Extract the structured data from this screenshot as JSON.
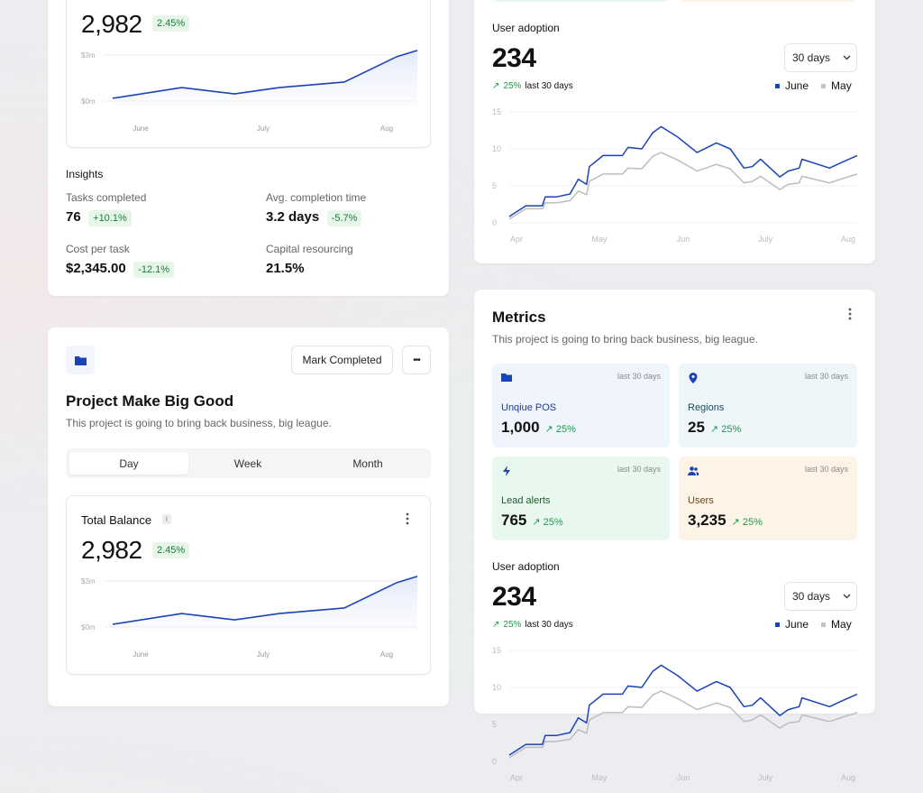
{
  "balance_card_top": {
    "value": "2,982",
    "change": "2.45%"
  },
  "insights": {
    "title": "Insights",
    "items": [
      {
        "label": "Tasks completed",
        "value": "76",
        "change": "+10.1%"
      },
      {
        "label": "Avg. completion time",
        "value": "3.2 days",
        "change": "-5.7%"
      },
      {
        "label": "Cost per task",
        "value": "$2,345.00",
        "change": "-12.1%"
      },
      {
        "label": "Capital resourcing",
        "value": "21.5%"
      }
    ]
  },
  "project": {
    "icon": "folder-icon",
    "mark_completed": "Mark Completed",
    "more": "•••",
    "title": "Project Make Big Good",
    "description": "This project is going to bring back business, big league.",
    "tabs": [
      "Day",
      "Week",
      "Month"
    ],
    "active_tab": "Day",
    "balance": {
      "title": "Total Balance",
      "info": "i",
      "value": "2,982",
      "change": "2.45%"
    }
  },
  "adoption": {
    "title": "User adoption",
    "value": "234",
    "trend": "25%",
    "trend_period": "last 30 days",
    "dropdown": "30 days",
    "legend": [
      "June",
      "May"
    ]
  },
  "metrics": {
    "title": "Metrics",
    "description": "This project is going to bring back business, big league.",
    "tiles": [
      {
        "icon": "folder-icon",
        "period": "last 30 days",
        "label": "Unqiue POS",
        "value": "1,000",
        "change": "25%",
        "bg": "#f0f5fd",
        "label_color": "#1d3f8f"
      },
      {
        "icon": "location-pin-icon",
        "period": "last 30 days",
        "label": "Regions",
        "value": "25",
        "change": "25%",
        "bg": "#eff6fa",
        "label_color": "#1d4a5a"
      },
      {
        "icon": "lightning-icon",
        "period": "last 30 days",
        "label": "Lead alerts",
        "value": "765",
        "change": "25%",
        "bg": "#e9f8ee",
        "label_color": "#1d5a2e"
      },
      {
        "icon": "users-icon",
        "period": "last 30 days",
        "label": "Users",
        "value": "3,235",
        "change": "25%",
        "bg": "#fdf3e6",
        "label_color": "#6a4a1a"
      }
    ]
  },
  "colors": {
    "accent": "#1a43b8",
    "positive": "#1c9a4a",
    "secondary_series": "#bdbdbd"
  },
  "chart_data": [
    {
      "type": "area",
      "ylabels": [
        "$3m",
        "$0m"
      ],
      "yticks": [
        3,
        0
      ],
      "ylim": [
        0,
        3.3
      ],
      "xlabels": [
        "June",
        "July",
        "Aug"
      ],
      "x": [
        "05-24",
        "06-10",
        "06-23",
        "07-04",
        "07-20",
        "08-02",
        "08-07"
      ],
      "series": [
        {
          "values": [
            0.18,
            0.88,
            0.47,
            0.88,
            1.24,
            2.9,
            3.3
          ]
        }
      ]
    },
    {
      "type": "line",
      "yticks": [
        0,
        5,
        10,
        15
      ],
      "ylim": [
        0,
        15
      ],
      "xlabels": [
        "Apr",
        "May",
        "Jun",
        "July",
        "Aug"
      ],
      "x": [
        "04-01",
        "04-07",
        "04-13",
        "04-14",
        "04-18",
        "04-23",
        "04-26",
        "04-29",
        "04-30",
        "05-05",
        "05-12",
        "05-14",
        "05-19",
        "05-23",
        "05-26",
        "06-01",
        "06-08",
        "06-15",
        "06-20",
        "06-25",
        "06-28",
        "07-01",
        "07-08",
        "07-11",
        "07-15",
        "07-16",
        "07-26",
        "07-30",
        "08-05"
      ],
      "series": [
        {
          "name": "June",
          "values": [
            0.85,
            2.3,
            2.3,
            3.5,
            3.5,
            3.9,
            5.9,
            5.2,
            7.6,
            9.1,
            9.1,
            10.2,
            10.0,
            12.2,
            13.0,
            11.6,
            9.5,
            10.8,
            10.0,
            7.4,
            7.6,
            8.6,
            6.2,
            7.0,
            7.4,
            8.6,
            7.4,
            8.1,
            9.1
          ]
        },
        {
          "name": "May",
          "values": [
            0.5,
            1.9,
            1.9,
            2.7,
            2.7,
            3.0,
            4.3,
            3.8,
            5.6,
            6.6,
            6.6,
            7.4,
            7.3,
            9.0,
            9.5,
            8.5,
            7.0,
            7.9,
            7.3,
            5.4,
            5.6,
            6.3,
            4.5,
            5.2,
            5.4,
            6.3,
            5.4,
            5.9,
            6.6
          ]
        }
      ]
    }
  ]
}
